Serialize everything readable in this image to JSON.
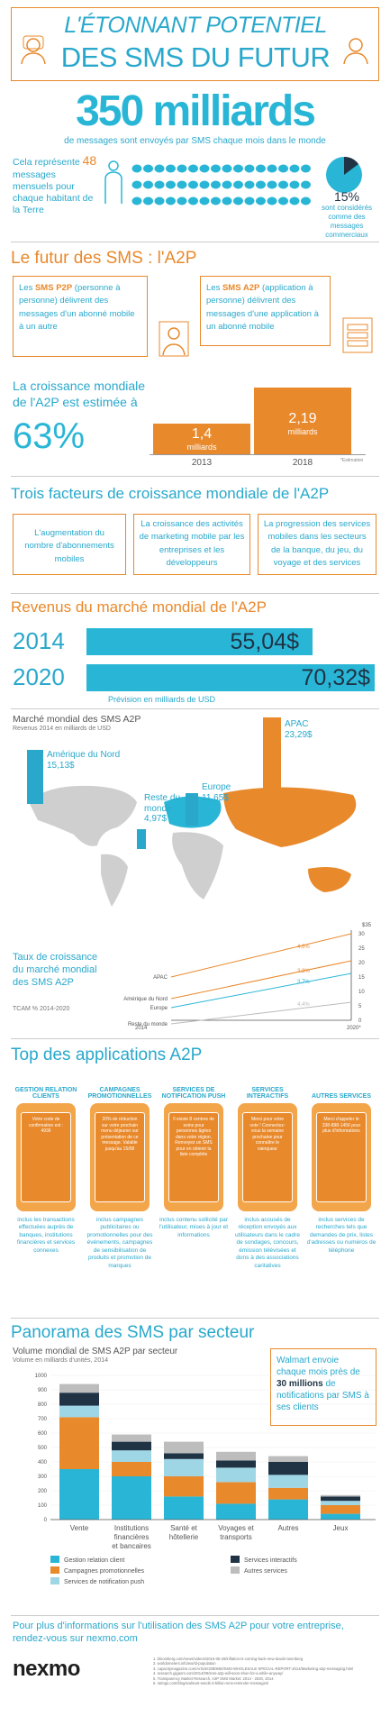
{
  "header": {
    "title1": "L'ÉTONNANT POTENTIEL",
    "title2": "DES SMS DU FUTUR",
    "big_number": "350 milliards",
    "big_sub": "de messages sont envoyés par SMS chaque mois dans le monde",
    "per_person_pre": "Cela représente",
    "per_person_num": "48",
    "per_person_post": "messages mensuels pour chaque habitant de la Terre",
    "pct": "15%",
    "pct_text": "sont considérés comme des messages commerciaux"
  },
  "a2p": {
    "title": "Le futur des SMS : l'A2P",
    "p2p_text_a": "Les ",
    "p2p_bold": "SMS P2P",
    "p2p_text_b": " (personne à personne) délivrent des messages d'un abonné mobile à un autre",
    "a2p_text_a": "Les ",
    "a2p_bold": "SMS A2P",
    "a2p_text_b": " (application à personne) délivrent des messages d'une application à un abonné mobile",
    "growth_label": "La croissance mondiale de l'A2P est estimée à",
    "growth_pct": "63%",
    "bar1_value": "1,4",
    "bar1_unit": "milliards",
    "bar1_year": "2013",
    "bar2_value": "2,19",
    "bar2_unit": "milliards",
    "bar2_year": "2018",
    "bar_note": "*Estimation"
  },
  "factors": {
    "title": "Trois facteurs de croissance mondiale de l'A2P",
    "items": [
      "L'augmentation du nombre d'abonnements mobiles",
      "La croissance des activités de marketing mobile par les entreprises et les développeurs",
      "La progression des services mobiles dans les secteurs de la banque, du jeu, du voyage et des services"
    ]
  },
  "revenue": {
    "title": "Revenus du marché mondial de l'A2P",
    "rows": [
      {
        "year": "2014",
        "value": "55,04$",
        "fraction": 0.783
      },
      {
        "year": "2020",
        "value": "70,32$",
        "fraction": 1.0
      }
    ],
    "note": "Prévision en milliards de USD"
  },
  "map": {
    "title": "Marché mondial des SMS A2P",
    "subtitle": "Revenus 2014 en milliards de USD",
    "regions": [
      {
        "name": "Amérique du Nord",
        "value": "15,13$"
      },
      {
        "name": "Reste du monde",
        "value": "4,97$"
      },
      {
        "name": "Europe",
        "value": "11,65$"
      },
      {
        "name": "APAC",
        "value": "23,29$"
      }
    ]
  },
  "tcam": {
    "label": "Taux de croissance du marché mondial des SMS A2P",
    "sub": "TCAM % 2014-2020",
    "unit": "$35",
    "yticks": [
      "30",
      "25",
      "20",
      "15",
      "10",
      "5",
      "0"
    ],
    "xticks": [
      "2014",
      "2020*"
    ],
    "lines": [
      {
        "name": "APAC",
        "pct": "4,6%"
      },
      {
        "name": "Amérique du Nord",
        "pct": "3,8%"
      },
      {
        "name": "Europe",
        "pct": "3,7%"
      },
      {
        "name": "Reste du monde",
        "pct": "4,4%"
      }
    ]
  },
  "apps": {
    "title": "Top des applications A2P",
    "items": [
      {
        "head": "GESTION RELATION CLIENTS",
        "screen": "Votre code de confirmation est : 4936",
        "desc": "inclus les transactions effectuées auprès de banques, institutions financières et services connexes"
      },
      {
        "head": "CAMPAGNES PROMOTIONNELLES",
        "screen": "20% de réduction sur votre prochain menu déjeuner sur présentation de ce message. Valable jusqu'au 15/08",
        "desc": "inclus campagnes publicitaires ou promotionnelles pour des événements, campagnes de sensibilisation de produits et promotion de marques"
      },
      {
        "head": "SERVICES DE NOTIFICATION PUSH",
        "screen": "Il existe 8 centres de soins pour personnes âgées dans votre région. Renvoyez un SMS pour en obtenir la liste complète",
        "desc": "inclus contenu sollicité par l'utilisateur, mises à jour et informations"
      },
      {
        "head": "SERVICES INTERACTIFS",
        "screen": "Merci pour votre vote ! Connectez-vous la semaine prochaine pour connaître le vainqueur",
        "desc": "inclus accusés de réception envoyés aux utilisateurs dans le cadre de sondages, concours, émission télévisées et dons à des associations caritatives"
      },
      {
        "head": "AUTRES SERVICES",
        "screen": "Merci d'appeler le 338-898-1456 pour plus d'informations",
        "desc": "inclus services de recherches tels que demandes de prix, listes d'adresses ou numéros de téléphone"
      }
    ]
  },
  "sector": {
    "title": "Panorama des SMS par secteur",
    "chart_title": "Volume mondial de SMS A2P par secteur",
    "chart_sub": "Volume en milliards d'unités, 2014",
    "walmart_a": "Walmart envoie chaque mois près de ",
    "walmart_bold": "30 millions",
    "walmart_b": " de notifications par SMS à ses clients"
  },
  "chart_data": {
    "type": "bar",
    "title": "Volume mondial de SMS A2P par secteur",
    "subtitle": "Volume en milliards d'unités, 2014",
    "categories": [
      "Vente",
      "Institutions financières et bancaires",
      "Santé et hôtellerie",
      "Voyages et transports",
      "Autres",
      "Jeux"
    ],
    "ylim": [
      0,
      1000
    ],
    "yticks": [
      "1000",
      "900",
      "800",
      "700",
      "600",
      "500",
      "400",
      "300",
      "200",
      "100",
      "0"
    ],
    "stacked": true,
    "series": [
      {
        "name": "Gestion relation client",
        "color": "#29b6d6",
        "values": [
          350,
          300,
          160,
          110,
          140,
          40
        ]
      },
      {
        "name": "Campagnes promotionnelles",
        "color": "#e8892b",
        "values": [
          360,
          100,
          140,
          150,
          80,
          60
        ]
      },
      {
        "name": "Services de notification push",
        "color": "#9fd6e6",
        "values": [
          80,
          80,
          120,
          100,
          90,
          30
        ]
      },
      {
        "name": "Services interactifs",
        "color": "#1f3345",
        "values": [
          90,
          60,
          40,
          50,
          90,
          30
        ]
      },
      {
        "name": "Autres services",
        "color": "#bdbdbd",
        "values": [
          60,
          50,
          80,
          60,
          40,
          10
        ]
      }
    ]
  },
  "footer": {
    "cta": "Pour plus d'informations sur l'utilisation des SMS A2P pour votre entreprise, rendez-vous sur nexmo.com",
    "logo": "nexmo",
    "refs": [
      "1. bloomberg.com/news/videos/2015-05-26/inflation-is-coming-back-new-david-rosenberg",
      "2. worldometers.info/world-population",
      "3. capacitymagazine.com/Article/3380650/SMS-WHOLESALE-SPECIAL-REPORT-2014/Marketing-a2p-messaging.html",
      "4. research.gigaom.com/2014/09/sms-a2p-will-soon-shun-for-a-while-anyway/",
      "5. Transparency Market Research, A2P SMS Market: 2014 - 2020, 2014",
      "6. ratings.com/blog/walmart-sends-3-billion-sms-reminder-messages/"
    ]
  }
}
